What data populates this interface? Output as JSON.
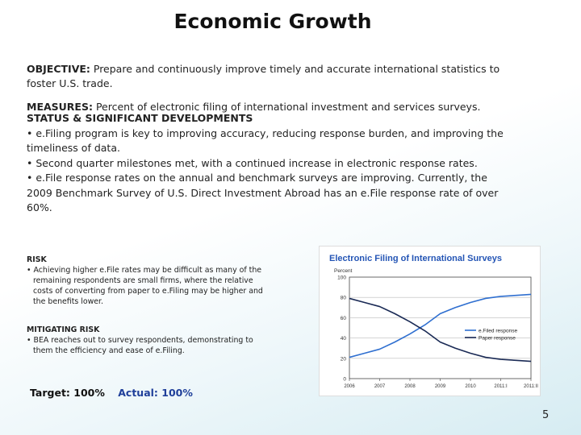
{
  "title": "Economic Growth",
  "objective": {
    "label": "OBJECTIVE:",
    "text": " Prepare and continuously improve timely and accurate international statistics to foster U.S. trade."
  },
  "measures": {
    "label": "MEASURES:",
    "text": " Percent of electronic filing of international investment and services surveys."
  },
  "status": {
    "heading": "STATUS & SIGNIFICANT DEVELOPMENTS",
    "items": [
      "• e.Filing program is key to improving accuracy, reducing response burden, and improving the timeliness of data.",
      "• Second quarter milestones met, with a continued increase in electronic response rates.",
      "• e.File response rates on the annual and benchmark surveys are improving. Currently, the 2009 Benchmark Survey of U.S. Direct Investment Abroad has an e.File response rate of over 60%."
    ]
  },
  "risk": {
    "heading": "RISK",
    "items": [
      "• Achieving higher e.File rates may be difficult as many of the remaining respondents are small firms, where the relative costs of converting from paper to e.Filing may be higher and the benefits lower."
    ]
  },
  "mitigating_risk": {
    "heading": "MITIGATING RISK",
    "items": [
      "• BEA reaches out to survey respondents, demonstrating to them the efficiency and ease of e.Filing."
    ]
  },
  "target": {
    "target_text": "Target: 100%",
    "actual_text": "Actual: 100%"
  },
  "page_number": "5",
  "colors": {
    "chart_title": "#2455b5",
    "efiled": "#2f6fd0",
    "paper": "#1a2a55",
    "actual": "#1f3f9a"
  },
  "chart_data": {
    "type": "line",
    "title": "Electronic Filing of International Surveys",
    "ylabel": "Percent",
    "ylim": [
      0,
      100
    ],
    "yticks": [
      "0",
      "20",
      "40",
      "60",
      "80",
      "100"
    ],
    "categories": [
      "2006",
      "2007",
      "2008",
      "2009",
      "2010",
      "2011:I",
      "2011:II"
    ],
    "series": [
      {
        "name": "e.Filed response",
        "x": [
          0,
          0.5,
          1,
          1.5,
          2,
          2.5,
          3,
          3.5,
          4,
          4.5,
          5,
          5.5,
          6
        ],
        "values": [
          21,
          25,
          29,
          36,
          44,
          53,
          64,
          70,
          75,
          79,
          81,
          82,
          83
        ]
      },
      {
        "name": "Paper response",
        "x": [
          0,
          0.5,
          1,
          1.5,
          2,
          2.5,
          3,
          3.5,
          4,
          4.5,
          5,
          5.5,
          6
        ],
        "values": [
          79,
          75,
          71,
          64,
          56,
          47,
          36,
          30,
          25,
          21,
          19,
          18,
          17
        ]
      }
    ],
    "grid": true,
    "legend": "center-right"
  }
}
